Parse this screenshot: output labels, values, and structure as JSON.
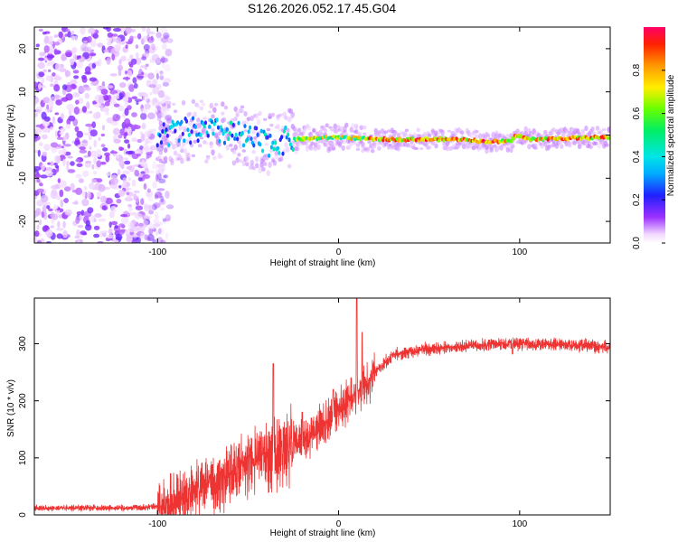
{
  "title": "S126.2026.052.17.45.G04",
  "chart_data": [
    {
      "type": "heatmap",
      "name": "spectrogram",
      "xlabel": "Height of straight line (km)",
      "ylabel": "Frequency (Hz)",
      "xlim": [
        -168,
        150
      ],
      "ylim": [
        -25,
        25
      ],
      "xticks": [
        -100,
        0,
        100
      ],
      "xtick_labels": [
        "-100",
        "0",
        "100"
      ],
      "yticks": [
        -20,
        -10,
        0,
        10,
        20
      ],
      "ytick_labels": [
        "-20",
        "-10",
        "0",
        "10",
        "20"
      ],
      "colorbar": {
        "label": "Normalized spectral amplitude",
        "range": [
          0,
          1
        ],
        "ticks": [
          0.0,
          0.2,
          0.4,
          0.6,
          0.8
        ],
        "tick_labels": [
          "0.0",
          "0.2",
          "0.4",
          "0.6",
          "0.8"
        ]
      },
      "line_center_hz": [
        [
          -100,
          0
        ],
        [
          -80,
          1
        ],
        [
          -60,
          0.5
        ],
        [
          -40,
          -2
        ],
        [
          -25,
          -1
        ],
        [
          0,
          -0.5
        ],
        [
          20,
          -1
        ],
        [
          70,
          -1
        ],
        [
          80,
          -1.5
        ],
        [
          95,
          -1.5
        ],
        [
          98,
          0
        ],
        [
          105,
          -1
        ],
        [
          150,
          -0.5
        ]
      ]
    },
    {
      "type": "line",
      "name": "snr",
      "xlabel": "Height of straight line (km)",
      "ylabel": "SNR (10 * v/v)",
      "xlim": [
        -168,
        150
      ],
      "ylim": [
        0,
        380
      ],
      "xticks": [
        -100,
        0,
        100
      ],
      "xtick_labels": [
        "-100",
        "0",
        "100"
      ],
      "yticks": [
        0,
        100,
        200,
        300
      ],
      "ytick_labels": [
        "0",
        "100",
        "200",
        "300"
      ],
      "color": "#ee3333",
      "envelope": [
        [
          -168,
          12
        ],
        [
          -110,
          12
        ],
        [
          -95,
          18
        ],
        [
          -80,
          40
        ],
        [
          -60,
          70
        ],
        [
          -45,
          100
        ],
        [
          -30,
          120
        ],
        [
          -15,
          140
        ],
        [
          0,
          185
        ],
        [
          10,
          210
        ],
        [
          20,
          250
        ],
        [
          30,
          280
        ],
        [
          45,
          290
        ],
        [
          70,
          295
        ],
        [
          90,
          300
        ],
        [
          110,
          300
        ],
        [
          150,
          295
        ]
      ],
      "spikes": [
        [
          -36,
          265
        ],
        [
          -20,
          180
        ],
        [
          -3,
          220
        ],
        [
          10,
          380
        ],
        [
          13,
          320
        ],
        [
          17,
          240
        ],
        [
          96,
          282
        ]
      ]
    }
  ]
}
